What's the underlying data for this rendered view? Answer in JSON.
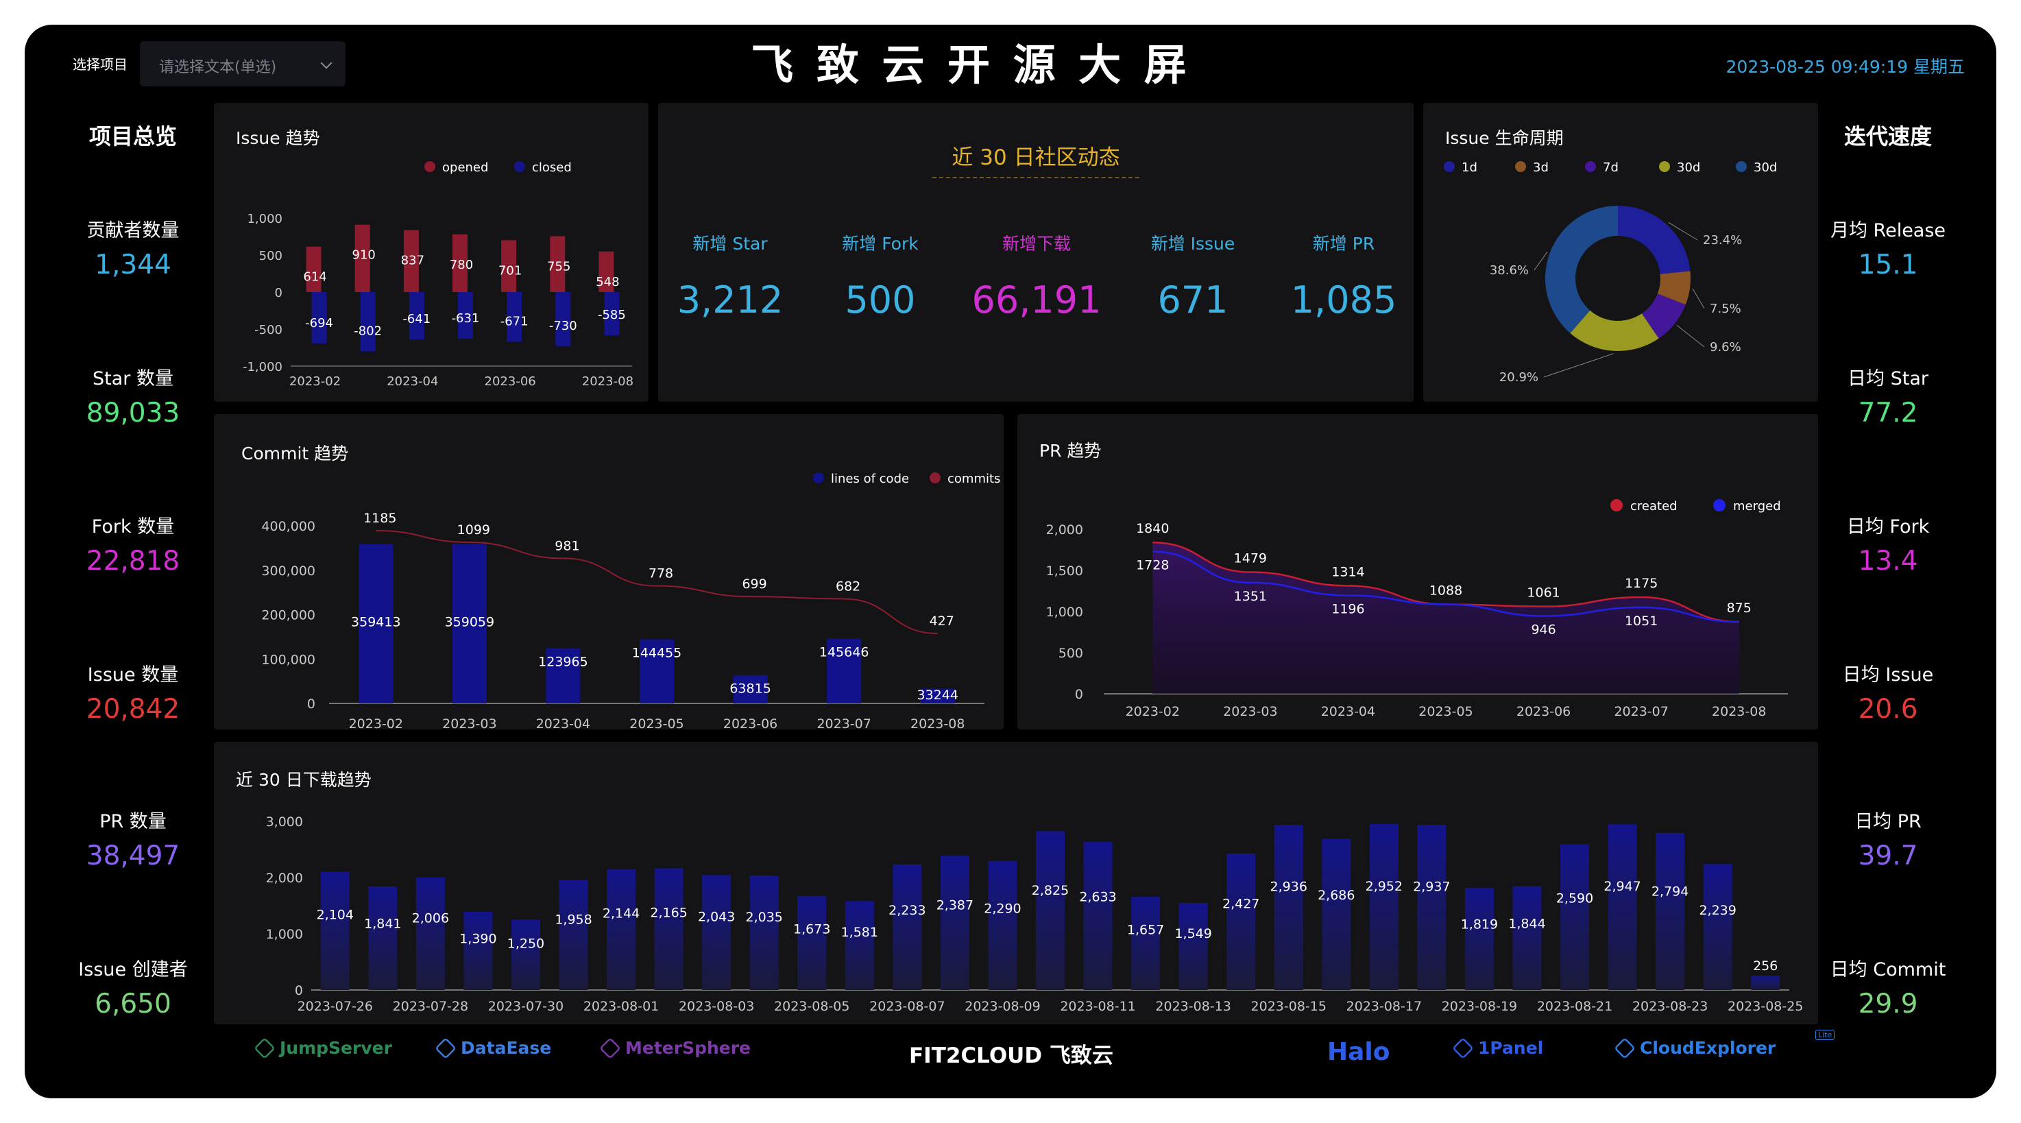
{
  "header": {
    "select_label": "选择项目",
    "select_placeholder": "请选择文本(单选)",
    "title": "飞 致 云 开 源 大 屏",
    "datetime": "2023-08-25 09:49:19 星期五"
  },
  "overview": {
    "title": "项目总览",
    "items": [
      {
        "label": "贡献者数量",
        "value": "1,344",
        "color": "#3cb2e3"
      },
      {
        "label": "Star 数量",
        "value": "89,033",
        "color": "#56e37e"
      },
      {
        "label": "Fork 数量",
        "value": "22,818",
        "color": "#d22fd3"
      },
      {
        "label": "Issue 数量",
        "value": "20,842",
        "color": "#e03a3a"
      },
      {
        "label": "PR 数量",
        "value": "38,497",
        "color": "#8a63f0"
      },
      {
        "label": "Issue 创建者",
        "value": "6,650",
        "color": "#7fd67f"
      }
    ]
  },
  "velocity": {
    "title": "迭代速度",
    "items": [
      {
        "label": "月均 Release",
        "value": "15.1",
        "color": "#3cb2e3"
      },
      {
        "label": "日均 Star",
        "value": "77.2",
        "color": "#56e37e"
      },
      {
        "label": "日均 Fork",
        "value": "13.4",
        "color": "#d22fd3"
      },
      {
        "label": "日均 Issue",
        "value": "20.6",
        "color": "#e03a3a"
      },
      {
        "label": "日均 PR",
        "value": "39.7",
        "color": "#8a63f0"
      },
      {
        "label": "日均 Commit",
        "value": "29.9",
        "color": "#7fd67f"
      }
    ]
  },
  "community": {
    "title": "近 30 日社区动态",
    "stats": [
      {
        "label": "新增 Star",
        "value": "3,212",
        "color": "#3cb2e3"
      },
      {
        "label": "新增 Fork",
        "value": "500",
        "color": "#3cb2e3"
      },
      {
        "label": "新增下载",
        "value": "66,191",
        "color": "#d22fd3"
      },
      {
        "label": "新增 Issue",
        "value": "671",
        "color": "#3cb2e3"
      },
      {
        "label": "新增 PR",
        "value": "1,085",
        "color": "#3cb2e3"
      }
    ]
  },
  "footer_logos": [
    {
      "name": "JumpServer",
      "color": "#2e8b57"
    },
    {
      "name": "DataEase",
      "color": "#3d7fe0"
    },
    {
      "name": "MeterSphere",
      "color": "#7c3aa8"
    },
    {
      "name": "FIT2CLOUD 飞致云",
      "color": "#ffffff"
    },
    {
      "name": "Halo",
      "color": "#2d5de8"
    },
    {
      "name": "1Panel",
      "color": "#2d5de8"
    },
    {
      "name": "CloudExplorer",
      "color": "#2d7fe8"
    }
  ],
  "footer_badge": "Lite",
  "chart_data": [
    {
      "id": "issue_trend",
      "type": "bar",
      "title": "Issue 趋势",
      "categories": [
        "2023-02",
        "2023-03",
        "2023-04",
        "2023-05",
        "2023-06",
        "2023-07",
        "2023-08"
      ],
      "x_tick_labels": [
        "2023-02",
        "2023-04",
        "2023-06",
        "2023-08"
      ],
      "series": [
        {
          "name": "opened",
          "values": [
            614,
            910,
            837,
            780,
            701,
            755,
            548
          ],
          "color": "#8c1c2e"
        },
        {
          "name": "closed",
          "values": [
            -694,
            -802,
            -641,
            -631,
            -671,
            -730,
            -585
          ],
          "color": "#14148c"
        }
      ],
      "ylim": [
        -1000,
        1000
      ],
      "y_ticks": [
        "1,000",
        "500",
        "0",
        "-500",
        "-1,000"
      ],
      "legend": "top-right"
    },
    {
      "id": "issue_lifecycle",
      "type": "pie",
      "title": "Issue 生命周期",
      "labels": [
        "1d",
        "3d",
        "7d",
        "30d",
        "30d"
      ],
      "values": [
        23.4,
        7.5,
        9.6,
        20.9,
        38.6
      ],
      "value_labels": [
        "23.4%",
        "7.5%",
        "9.6%",
        "20.9%",
        "38.6%"
      ],
      "colors": [
        "#1f1f9c",
        "#8a5523",
        "#441699",
        "#9a9a20",
        "#1d4a8c"
      ],
      "legend": "top"
    },
    {
      "id": "commit_trend",
      "type": "bar",
      "title": "Commit 趋势",
      "categories": [
        "2023-02",
        "2023-03",
        "2023-04",
        "2023-05",
        "2023-06",
        "2023-07",
        "2023-08"
      ],
      "series": [
        {
          "name": "lines of code",
          "values": [
            359413,
            359059,
            123965,
            144455,
            63815,
            145646,
            33244
          ],
          "color": "#12128a"
        },
        {
          "name": "commits",
          "type": "line",
          "values": [
            1185,
            1099,
            981,
            778,
            699,
            682,
            427
          ],
          "color": "#8c1c2e"
        }
      ],
      "ylim": [
        0,
        400000
      ],
      "y_ticks": [
        "400,000",
        "300,000",
        "200,000",
        "100,000",
        "0"
      ],
      "legend": "top-right"
    },
    {
      "id": "pr_trend",
      "type": "area",
      "title": "PR 趋势",
      "categories": [
        "2023-02",
        "2023-03",
        "2023-04",
        "2023-05",
        "2023-06",
        "2023-07",
        "2023-08"
      ],
      "series": [
        {
          "name": "created",
          "values": [
            1840,
            1479,
            1314,
            1088,
            1061,
            1175,
            875
          ],
          "color": "#c81e32"
        },
        {
          "name": "merged",
          "values": [
            1728,
            1351,
            1196,
            1088,
            946,
            1051,
            875
          ],
          "color": "#2020e8"
        }
      ],
      "ylim": [
        0,
        2000
      ],
      "y_ticks": [
        "2,000",
        "1,500",
        "1,000",
        "500",
        "0"
      ],
      "legend": "top-right"
    },
    {
      "id": "download_trend",
      "type": "bar",
      "title": "近 30 日下载趋势",
      "categories": [
        "2023-07-26",
        "2023-07-27",
        "2023-07-28",
        "2023-07-29",
        "2023-07-30",
        "2023-07-31",
        "2023-08-01",
        "2023-08-02",
        "2023-08-03",
        "2023-08-04",
        "2023-08-05",
        "2023-08-06",
        "2023-08-07",
        "2023-08-08",
        "2023-08-09",
        "2023-08-10",
        "2023-08-11",
        "2023-08-12",
        "2023-08-13",
        "2023-08-14",
        "2023-08-15",
        "2023-08-16",
        "2023-08-17",
        "2023-08-18",
        "2023-08-19",
        "2023-08-20",
        "2023-08-21",
        "2023-08-22",
        "2023-08-23",
        "2023-08-24",
        "2023-08-25"
      ],
      "x_tick_labels": [
        "2023-07-26",
        "2023-07-28",
        "2023-07-30",
        "2023-08-01",
        "2023-08-03",
        "2023-08-05",
        "2023-08-07",
        "2023-08-09",
        "2023-08-11",
        "2023-08-13",
        "2023-08-15",
        "2023-08-17",
        "2023-08-19",
        "2023-08-21",
        "2023-08-23",
        "2023-08-25"
      ],
      "values": [
        2104,
        1841,
        2006,
        1390,
        1250,
        1958,
        2144,
        2165,
        2043,
        2035,
        1673,
        1581,
        2233,
        2387,
        2290,
        2825,
        2633,
        1657,
        1549,
        2427,
        2936,
        2686,
        2952,
        2937,
        1819,
        1844,
        2590,
        2947,
        2794,
        2239,
        256
      ],
      "value_labels": [
        "2,104",
        "1,841",
        "2,006",
        "1,390",
        "1,250",
        "1,958",
        "2,144",
        "2,165",
        "2,043",
        "2,035",
        "1,673",
        "1,581",
        "2,233",
        "2,387",
        "2,290",
        "2,825",
        "2,633",
        "1,657",
        "1,549",
        "2,427",
        "2,936",
        "2,686",
        "2,952",
        "2,937",
        "1,819",
        "1,844",
        "2,590",
        "2,947",
        "2,794",
        "2,239",
        "256"
      ],
      "ylim": [
        0,
        3000
      ],
      "y_ticks": [
        "3,000",
        "2,000",
        "1,000",
        "0"
      ],
      "color": "#14148c"
    }
  ]
}
